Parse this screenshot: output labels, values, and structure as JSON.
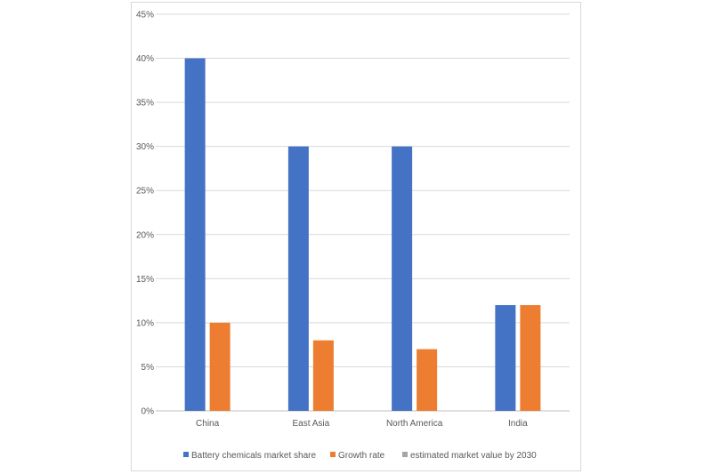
{
  "chart_data": {
    "type": "bar",
    "categories": [
      "China",
      "East Asia",
      "North America",
      "India"
    ],
    "series": [
      {
        "name": "Battery chemicals market share",
        "values": [
          40,
          30,
          30,
          12
        ],
        "color": "#4472c4"
      },
      {
        "name": "Growth rate",
        "values": [
          10,
          8,
          7,
          12
        ],
        "color": "#ed7d31"
      },
      {
        "name": "estimated market value by 2030",
        "values": [
          null,
          null,
          null,
          null
        ],
        "color": "#a5a5a5"
      }
    ],
    "yticks": [
      "0%",
      "5%",
      "10%",
      "15%",
      "20%",
      "25%",
      "30%",
      "35%",
      "40%",
      "45%"
    ],
    "ylim": [
      0,
      45
    ],
    "grid": true,
    "legend_position": "bottom"
  }
}
